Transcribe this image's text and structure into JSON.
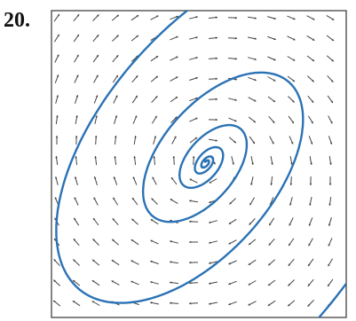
{
  "label": "20."
}
